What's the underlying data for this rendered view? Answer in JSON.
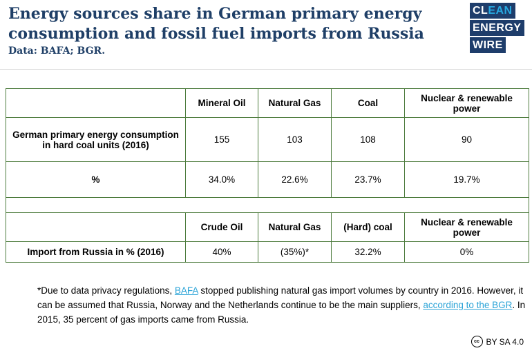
{
  "header": {
    "title": "Energy sources share in German primary energy consumption and fossil fuel imports from Russia",
    "subtitle": "Data: BAFA; BGR."
  },
  "logo": {
    "line1a": "CL",
    "line1b": "EAN",
    "line2": "ENERGY",
    "line3": "WIRE",
    "colors": {
      "background": "#1e3d6b",
      "accent": "#27a9e1"
    }
  },
  "table": {
    "consumption_headers": [
      "Mineral Oil",
      "Natural Gas",
      "Coal",
      "Nuclear & renewable power"
    ],
    "consumption_row": {
      "label": "German primary energy consumption in hard coal units (2016)",
      "values": [
        "155",
        "103",
        "108",
        "90"
      ]
    },
    "percent_row": {
      "label": "%",
      "values": [
        "34.0%",
        "22.6%",
        "23.7%",
        "19.7%"
      ]
    },
    "import_headers": [
      "Crude Oil",
      "Natural Gas",
      "(Hard) coal",
      "Nuclear & renewable power"
    ],
    "import_row": {
      "label": "Import from Russia in % (2016)",
      "values": [
        "40%",
        "(35%)*",
        "32.2%",
        "0%"
      ]
    }
  },
  "note": {
    "part1": "*Due to data privacy regulations, ",
    "link1": "BAFA",
    "part2": " stopped publishing natural gas import volumes by country in 2016. However, it can be assumed that Russia, Norway and the Netherlands continue to be the main suppliers, ",
    "link2": "according to the BGR",
    "part3": ". In 2015, 35 percent of gas imports came from Russia."
  },
  "license": {
    "icon": "cc",
    "text": "BY SA 4.0"
  }
}
